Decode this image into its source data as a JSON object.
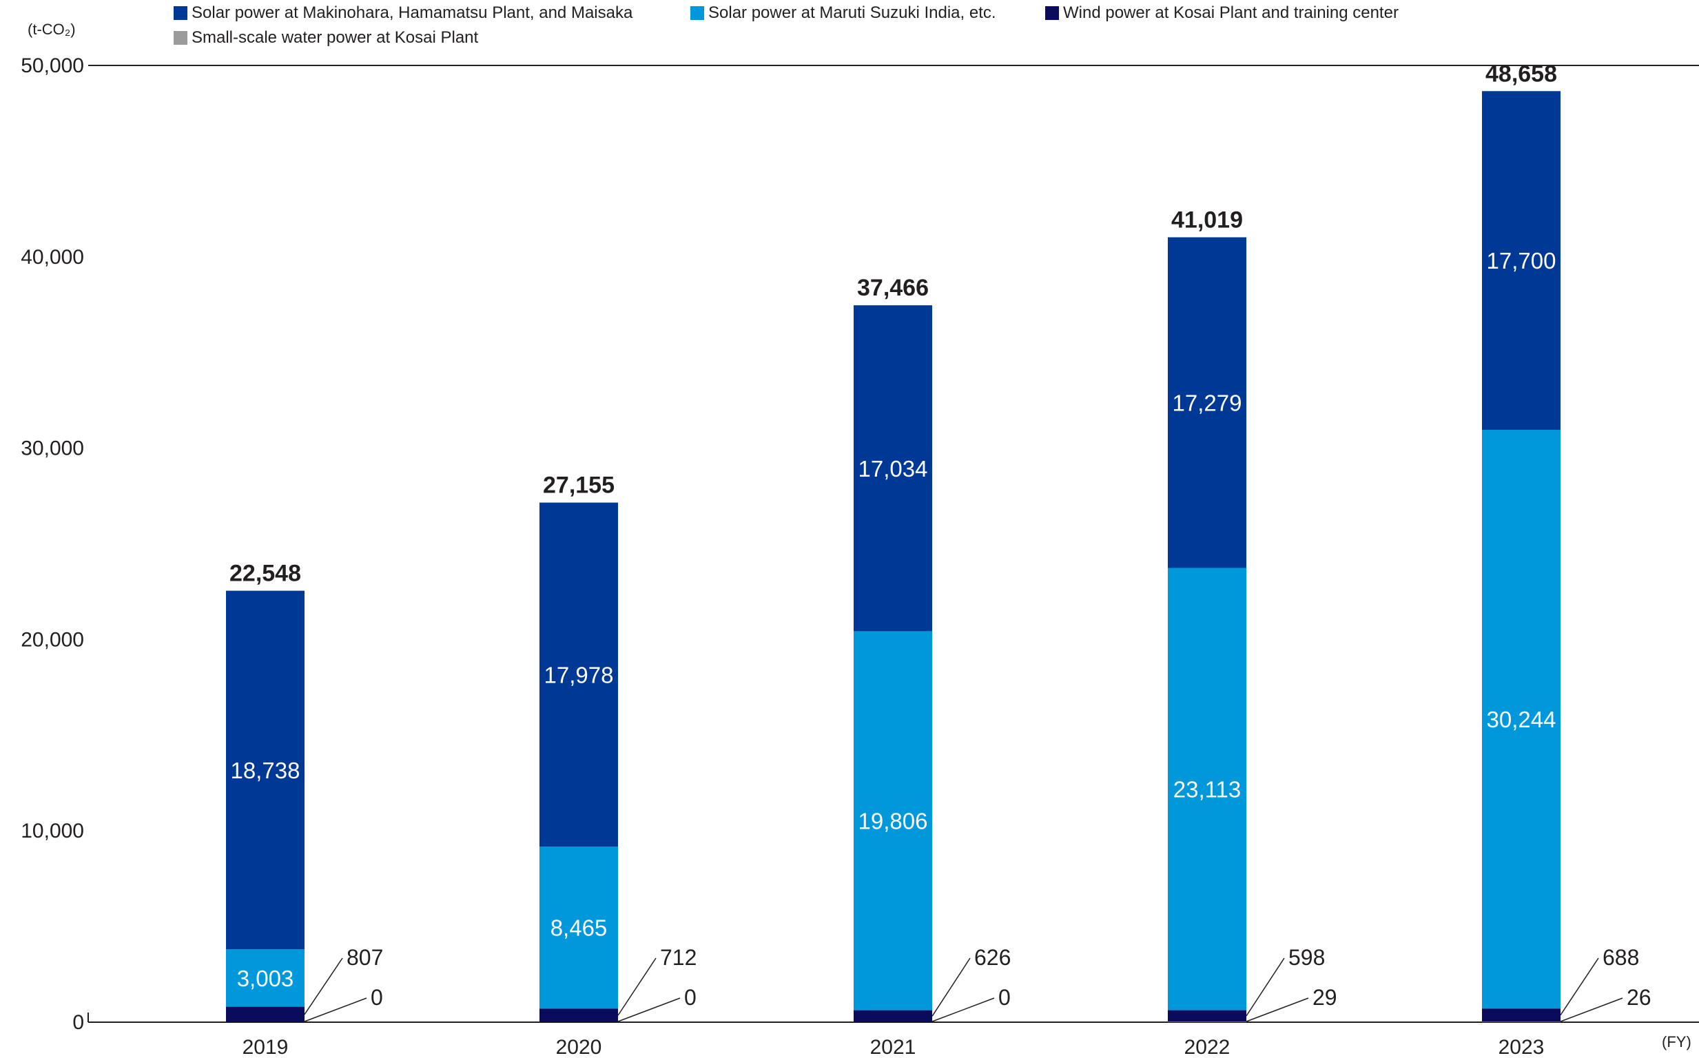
{
  "unit_label": "(t-CO₂)",
  "x_unit_label": "(FY)",
  "colors": {
    "solar_domestic": "#003896",
    "solar_india": "#0098da",
    "wind": "#0b0b5e",
    "water": "#9b9b9b",
    "leader": "#231f20",
    "axis": "#231f20"
  },
  "legend": [
    {
      "label": "Solar power at Makinohara, Hamamatsu Plant, and Maisaka",
      "color": "#003896"
    },
    {
      "label": "Solar power at Maruti Suzuki India, etc.",
      "color": "#0098da"
    },
    {
      "label": "Wind power at Kosai Plant and training center",
      "color": "#0b0b5e"
    },
    {
      "label": "Small-scale water power at Kosai Plant",
      "color": "#9b9b9b"
    }
  ],
  "chart_data": {
    "type": "bar",
    "stacked": true,
    "categories": [
      "2019",
      "2020",
      "2021",
      "2022",
      "2023"
    ],
    "series": [
      {
        "name": "Small-scale water power at Kosai Plant",
        "values": [
          0,
          0,
          0,
          29,
          26
        ],
        "label_style": "leader"
      },
      {
        "name": "Wind power at Kosai Plant and training center",
        "values": [
          807,
          712,
          626,
          598,
          688
        ],
        "label_style": "leader"
      },
      {
        "name": "Solar power at Maruti Suzuki India, etc.",
        "values": [
          3003,
          8465,
          19806,
          23113,
          30244
        ],
        "label_style": "inside"
      },
      {
        "name": "Solar power at Makinohara, Hamamatsu Plant, and Maisaka",
        "values": [
          18738,
          17978,
          17034,
          17279,
          17700
        ],
        "label_style": "inside"
      }
    ],
    "totals": [
      22548,
      27155,
      37466,
      41019,
      48658
    ],
    "total_labels": [
      "22,548",
      "27,155",
      "37,466",
      "41,019",
      "48,658"
    ],
    "value_labels": [
      [
        "0",
        "0",
        "0",
        "29",
        "26"
      ],
      [
        "807",
        "712",
        "626",
        "598",
        "688"
      ],
      [
        "3,003",
        "8,465",
        "19,806",
        "23,113",
        "30,244"
      ],
      [
        "18,738",
        "17,978",
        "17,034",
        "17,279",
        "17,700"
      ]
    ],
    "ylim": [
      0,
      50000
    ],
    "yticks": [
      0,
      10000,
      20000,
      30000,
      40000,
      50000
    ],
    "ytick_labels": [
      "0",
      "10,000",
      "20,000",
      "30,000",
      "40,000",
      "50,000"
    ],
    "ylabel": "(t-CO₂)",
    "xlabel": "(FY)",
    "grid": false,
    "legend_position": "top"
  }
}
